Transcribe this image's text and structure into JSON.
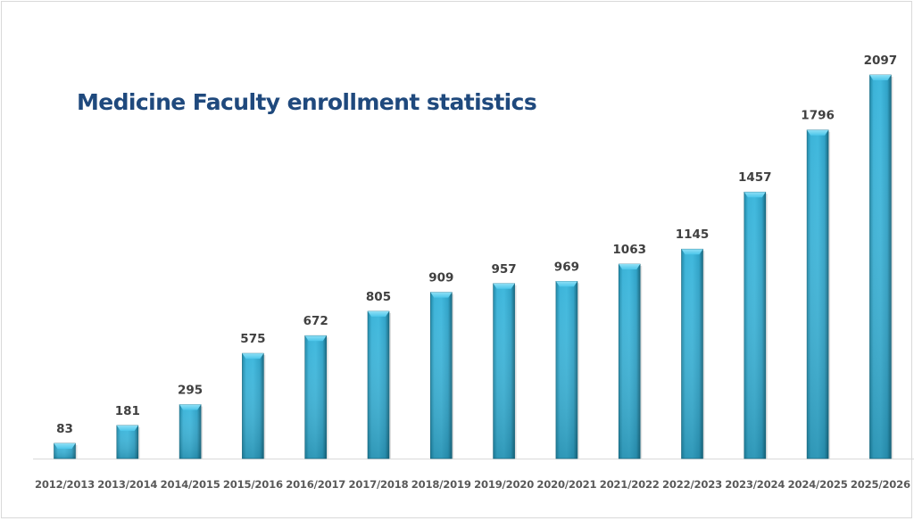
{
  "chart_data": {
    "type": "bar",
    "title": "Medicine Faculty enrollment statistics",
    "xlabel": "",
    "ylabel": "",
    "ylim": [
      0,
      2100
    ],
    "grid": false,
    "legend": "none",
    "categories": [
      "2012/2013",
      "2013/2014",
      "2014/2015",
      "2015/2016",
      "2016/2017",
      "2017/2018",
      "2018/2019",
      "2019/2020",
      "2020/2021",
      "2021/2022",
      "2022/2023",
      "2023/2024",
      "2024/2025",
      "2025/2026"
    ],
    "values": [
      83,
      181,
      295,
      575,
      672,
      805,
      909,
      957,
      969,
      1063,
      1145,
      1457,
      1796,
      2097
    ],
    "data_labels": [
      "83",
      "181",
      "295",
      "575",
      "672",
      "805",
      "909",
      "957",
      "969",
      "1063",
      "1145",
      "1457",
      "1796",
      "2097"
    ],
    "colors": {
      "bar_light": "#4cc6ea",
      "bar_mid": "#31a9cf",
      "bar_dark": "#1b7894",
      "title": "#1f497d",
      "axis": "#d9d9d9"
    }
  }
}
